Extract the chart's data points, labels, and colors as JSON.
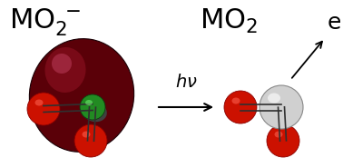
{
  "bg_color": "#ffffff",
  "orbital_color": "#5a0008",
  "orbital_highlight_color": "#b01030",
  "center_atom_color_left": "#228B22",
  "center_atom_color_right": "#d0d0d0",
  "oxygen_color": "#cc1100",
  "fontsize_title": 22,
  "fontsize_hv": 14,
  "fontsize_elec": 18
}
